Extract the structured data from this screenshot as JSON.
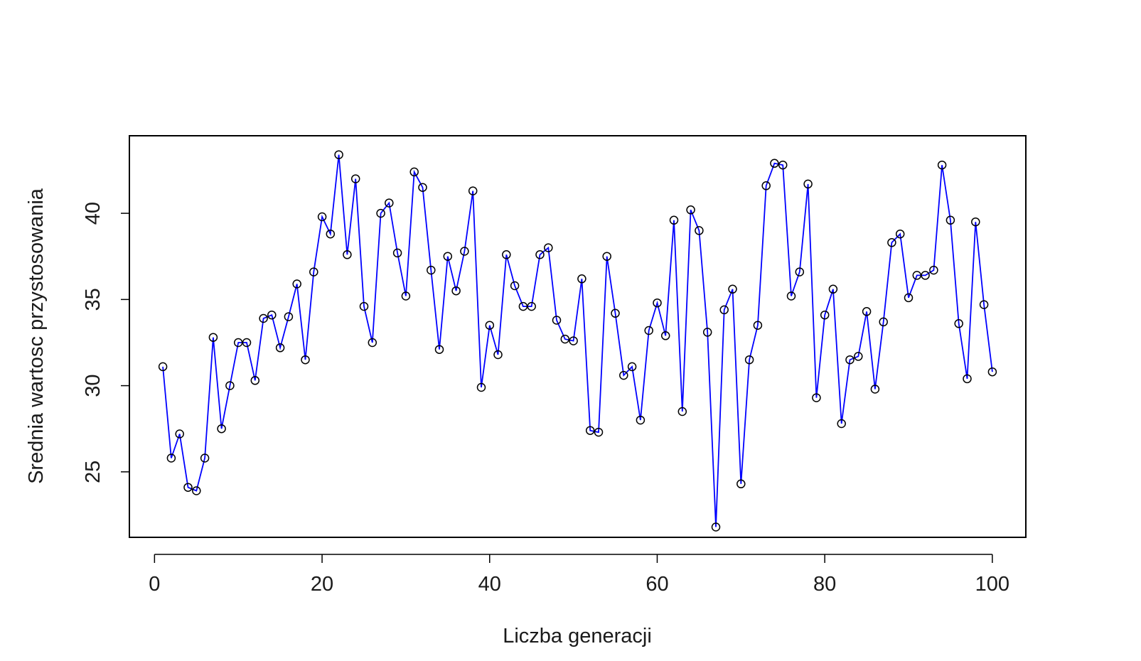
{
  "chart_data": {
    "type": "line",
    "title": "",
    "xlabel": "Liczba generacji",
    "ylabel": "Srednia wartosc przystosowania",
    "xlim": [
      -3,
      104
    ],
    "ylim": [
      21.2,
      44.5
    ],
    "x_ticks": [
      0,
      20,
      40,
      60,
      80,
      100
    ],
    "x_tick_labels": [
      "0",
      "20",
      "40",
      "60",
      "80",
      "100"
    ],
    "y_ticks": [
      25,
      30,
      35,
      40
    ],
    "y_tick_labels": [
      "25",
      "30",
      "35",
      "40"
    ],
    "grid": false,
    "legend": "none",
    "line_color": "#0000ff",
    "marker": "open-circle",
    "marker_color": "#000000",
    "series": [
      {
        "x": [
          1,
          2,
          3,
          4,
          5,
          6,
          7,
          8,
          9,
          10,
          11,
          12,
          13,
          14,
          15,
          16,
          17,
          18,
          19,
          20,
          21,
          22,
          23,
          24,
          25,
          26,
          27,
          28,
          29,
          30,
          31,
          32,
          33,
          34,
          35,
          36,
          37,
          38,
          39,
          40,
          41,
          42,
          43,
          44,
          45,
          46,
          47,
          48,
          49,
          50,
          51,
          52,
          53,
          54,
          55,
          56,
          57,
          58,
          59,
          60,
          61,
          62,
          63,
          64,
          65,
          66,
          67,
          68,
          69,
          70,
          71,
          72,
          73,
          74,
          75,
          76,
          77,
          78,
          79,
          80,
          81,
          82,
          83,
          84,
          85,
          86,
          87,
          88,
          89,
          90,
          91,
          92,
          93,
          94,
          95,
          96,
          97,
          98,
          99,
          100
        ],
        "values": [
          31.1,
          25.8,
          27.2,
          24.1,
          23.9,
          25.8,
          32.8,
          27.5,
          30.0,
          32.5,
          32.5,
          30.3,
          33.9,
          34.1,
          32.2,
          34.0,
          35.9,
          31.5,
          36.6,
          39.8,
          38.8,
          43.4,
          37.6,
          42.0,
          34.6,
          32.5,
          40.0,
          40.6,
          37.7,
          35.2,
          42.4,
          41.5,
          36.7,
          32.1,
          37.5,
          35.5,
          37.8,
          41.3,
          29.9,
          33.5,
          31.8,
          37.6,
          35.8,
          34.6,
          34.6,
          37.6,
          38.0,
          33.8,
          32.7,
          32.6,
          36.2,
          27.4,
          27.3,
          37.5,
          34.2,
          30.6,
          31.1,
          28.0,
          33.2,
          34.8,
          32.9,
          39.6,
          28.5,
          40.2,
          39.0,
          33.1,
          21.8,
          34.4,
          35.6,
          24.3,
          31.5,
          33.5,
          41.6,
          42.9,
          42.8,
          35.2,
          36.6,
          41.7,
          29.3,
          34.1,
          35.6,
          27.8,
          31.5,
          31.7,
          34.3,
          29.8,
          33.7,
          38.3,
          38.8,
          35.1,
          36.4,
          36.4,
          36.7,
          42.8,
          39.6,
          33.6,
          30.4,
          39.5,
          34.7,
          30.8
        ]
      }
    ]
  }
}
